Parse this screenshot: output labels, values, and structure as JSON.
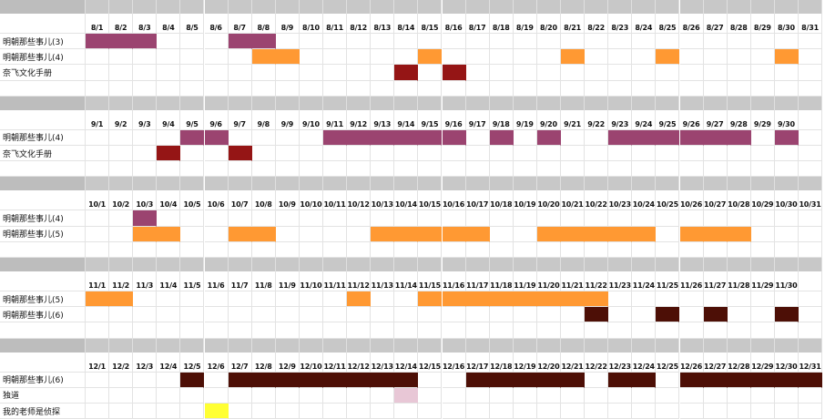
{
  "colors": {
    "plum": "#9b4470",
    "orange": "#ff9933",
    "crimson": "#951515",
    "darkbrown": "#4d0f06",
    "pink": "#e8c7d6",
    "yellow": "#ffff33"
  },
  "months": [
    {
      "id": "aug",
      "dates": [
        "8/1",
        "8/2",
        "8/3",
        "8/4",
        "8/5",
        "8/6",
        "8/7",
        "8/8",
        "8/9",
        "8/10",
        "8/11",
        "8/12",
        "8/13",
        "8/14",
        "8/15",
        "8/16",
        "8/17",
        "8/18",
        "8/19",
        "8/20",
        "8/21",
        "8/22",
        "8/23",
        "8/24",
        "8/25",
        "8/26",
        "8/27",
        "8/28",
        "8/29",
        "8/30",
        "8/31"
      ],
      "rows": [
        {
          "label": "明朝那些事儿(3)",
          "color": "plum",
          "spans": [
            [
              1,
              3
            ],
            [
              7,
              8
            ]
          ]
        },
        {
          "label": "明朝那些事儿(4)",
          "color": "orange",
          "spans": [
            [
              8,
              9
            ],
            [
              15,
              15
            ],
            [
              21,
              21
            ],
            [
              25,
              25
            ],
            [
              30,
              30
            ]
          ]
        },
        {
          "label": "奈飞文化手册",
          "color": "crimson",
          "spans": [
            [
              14,
              14
            ],
            [
              16,
              16
            ]
          ]
        }
      ]
    },
    {
      "id": "sep",
      "dates": [
        "9/1",
        "9/2",
        "9/3",
        "9/4",
        "9/5",
        "9/6",
        "9/7",
        "9/8",
        "9/9",
        "9/10",
        "9/11",
        "9/12",
        "9/13",
        "9/14",
        "9/15",
        "9/16",
        "9/17",
        "9/18",
        "9/19",
        "9/20",
        "9/21",
        "9/22",
        "9/23",
        "9/24",
        "9/25",
        "9/26",
        "9/27",
        "9/28",
        "9/29",
        "9/30"
      ],
      "rows": [
        {
          "label": "明朝那些事儿(4)",
          "color": "plum",
          "spans": [
            [
              5,
              6
            ],
            [
              11,
              16
            ],
            [
              18,
              18
            ],
            [
              20,
              20
            ],
            [
              23,
              28
            ],
            [
              30,
              30
            ]
          ]
        },
        {
          "label": "奈飞文化手册",
          "color": "crimson",
          "spans": [
            [
              4,
              4
            ],
            [
              7,
              7
            ]
          ]
        }
      ]
    },
    {
      "id": "oct",
      "dates": [
        "10/1",
        "10/2",
        "10/3",
        "10/4",
        "10/5",
        "10/6",
        "10/7",
        "10/8",
        "10/9",
        "10/10",
        "10/11",
        "10/12",
        "10/13",
        "10/14",
        "10/15",
        "10/16",
        "10/17",
        "10/18",
        "10/19",
        "10/20",
        "10/21",
        "10/22",
        "10/23",
        "10/24",
        "10/25",
        "10/26",
        "10/27",
        "10/28",
        "10/29",
        "10/30",
        "10/31"
      ],
      "rows": [
        {
          "label": "明朝那些事儿(4)",
          "color": "plum",
          "spans": [
            [
              3,
              3
            ]
          ]
        },
        {
          "label": "明朝那些事儿(5)",
          "color": "orange",
          "spans": [
            [
              3,
              4
            ],
            [
              7,
              8
            ],
            [
              13,
              17
            ],
            [
              20,
              24
            ],
            [
              26,
              28
            ]
          ]
        }
      ]
    },
    {
      "id": "nov",
      "dates": [
        "11/1",
        "11/2",
        "11/3",
        "11/4",
        "11/5",
        "11/6",
        "11/7",
        "11/8",
        "11/9",
        "11/10",
        "11/11",
        "11/12",
        "11/13",
        "11/14",
        "11/15",
        "11/16",
        "11/17",
        "11/18",
        "11/19",
        "11/20",
        "11/21",
        "11/22",
        "11/23",
        "11/24",
        "11/25",
        "11/26",
        "11/27",
        "11/28",
        "11/29",
        "11/30"
      ],
      "rows": [
        {
          "label": "明朝那些事儿(5)",
          "color": "orange",
          "spans": [
            [
              1,
              2
            ],
            [
              12,
              12
            ],
            [
              15,
              22
            ]
          ]
        },
        {
          "label": "明朝那些事儿(6)",
          "color": "darkbrown",
          "spans": [
            [
              22,
              22
            ],
            [
              25,
              25
            ],
            [
              27,
              27
            ],
            [
              30,
              30
            ]
          ]
        }
      ]
    },
    {
      "id": "dec",
      "dates": [
        "12/1",
        "12/2",
        "12/3",
        "12/4",
        "12/5",
        "12/6",
        "12/7",
        "12/8",
        "12/9",
        "12/10",
        "12/11",
        "12/12",
        "12/13",
        "12/14",
        "12/15",
        "12/16",
        "12/17",
        "12/18",
        "12/19",
        "12/20",
        "12/21",
        "12/22",
        "12/23",
        "12/24",
        "12/25",
        "12/26",
        "12/27",
        "12/28",
        "12/29",
        "12/30",
        "12/31"
      ],
      "rows": [
        {
          "label": "明朝那些事儿(6)",
          "color": "darkbrown",
          "spans": [
            [
              5,
              5
            ],
            [
              7,
              14
            ],
            [
              17,
              21
            ],
            [
              23,
              24
            ],
            [
              26,
              31
            ]
          ]
        },
        {
          "label": "独道",
          "color": "pink",
          "spans": [
            [
              14,
              14
            ]
          ]
        },
        {
          "label": "我的老师是侦探",
          "color": "yellow",
          "spans": [
            [
              6,
              6
            ]
          ]
        }
      ]
    }
  ]
}
